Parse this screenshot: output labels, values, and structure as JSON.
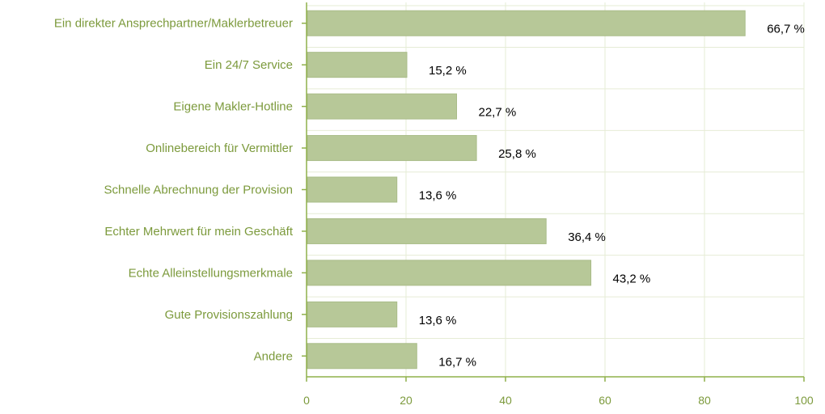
{
  "chart_data": {
    "type": "bar",
    "orientation": "horizontal",
    "categories": [
      "Ein direkter Ansprechpartner/Maklerbetreuer",
      "Ein 24/7 Service",
      "Eigene Makler-Hotline",
      "Onlinebereich für Vermittler",
      "Schnelle Abrechnung der Provision",
      "Echter Mehrwert für mein Geschäft",
      "Echte Alleinstellungsmerkmale",
      "Gute Provisionszahlung",
      "Andere"
    ],
    "values": [
      88,
      20,
      30,
      34,
      18,
      48,
      57,
      18,
      22
    ],
    "data_labels": [
      "66,7 %",
      "15,2 %",
      "22,7 %",
      "25,8 %",
      "13,6 %",
      "36,4 %",
      "43,2 %",
      "13,6 %",
      "16,7 %"
    ],
    "xlim": [
      0,
      100
    ],
    "xticks": [
      0,
      20,
      40,
      60,
      80,
      100
    ],
    "xtick_labels": [
      "0",
      "20",
      "40",
      "60",
      "80",
      "100"
    ],
    "grid": true,
    "title": "",
    "xlabel": "",
    "ylabel": "",
    "colors": {
      "bar": "#b7c898",
      "bar_edge": "#a9bc88",
      "label_text": "#7c9a3c",
      "axis": "#8fb04a",
      "grid": "#e6ecd6",
      "data_label_text": "#000000"
    }
  }
}
